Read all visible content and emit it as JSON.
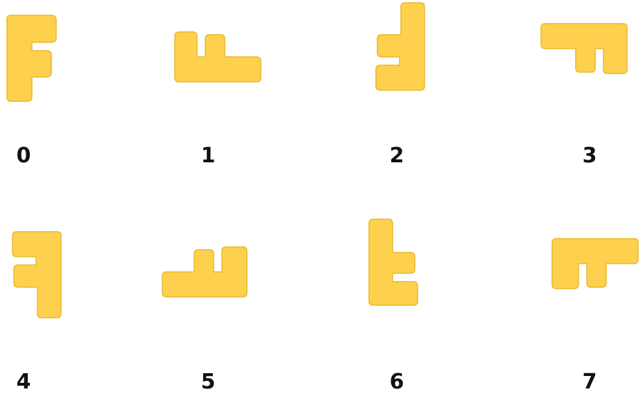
{
  "colors": {
    "piece_fill": "#FDD04E",
    "piece_edge": "#E8B92E",
    "background": "#FFFFFF",
    "label": "#111111"
  },
  "pieces": [
    {
      "label": "0",
      "shape": "F-letter",
      "orientation": "upright"
    },
    {
      "label": "1",
      "shape": "F-letter",
      "orientation": "rotated-90-cw"
    },
    {
      "label": "2",
      "shape": "F-letter",
      "orientation": "mirrored"
    },
    {
      "label": "3",
      "shape": "F-letter",
      "orientation": "rotated-90-ccw-mirrored"
    },
    {
      "label": "4",
      "shape": "F-letter",
      "orientation": "mirrored-variant"
    },
    {
      "label": "5",
      "shape": "F-letter",
      "orientation": "rotated-flat"
    },
    {
      "label": "6",
      "shape": "F-letter",
      "orientation": "upside-down"
    },
    {
      "label": "7",
      "shape": "F-letter",
      "orientation": "rotated-top"
    }
  ]
}
